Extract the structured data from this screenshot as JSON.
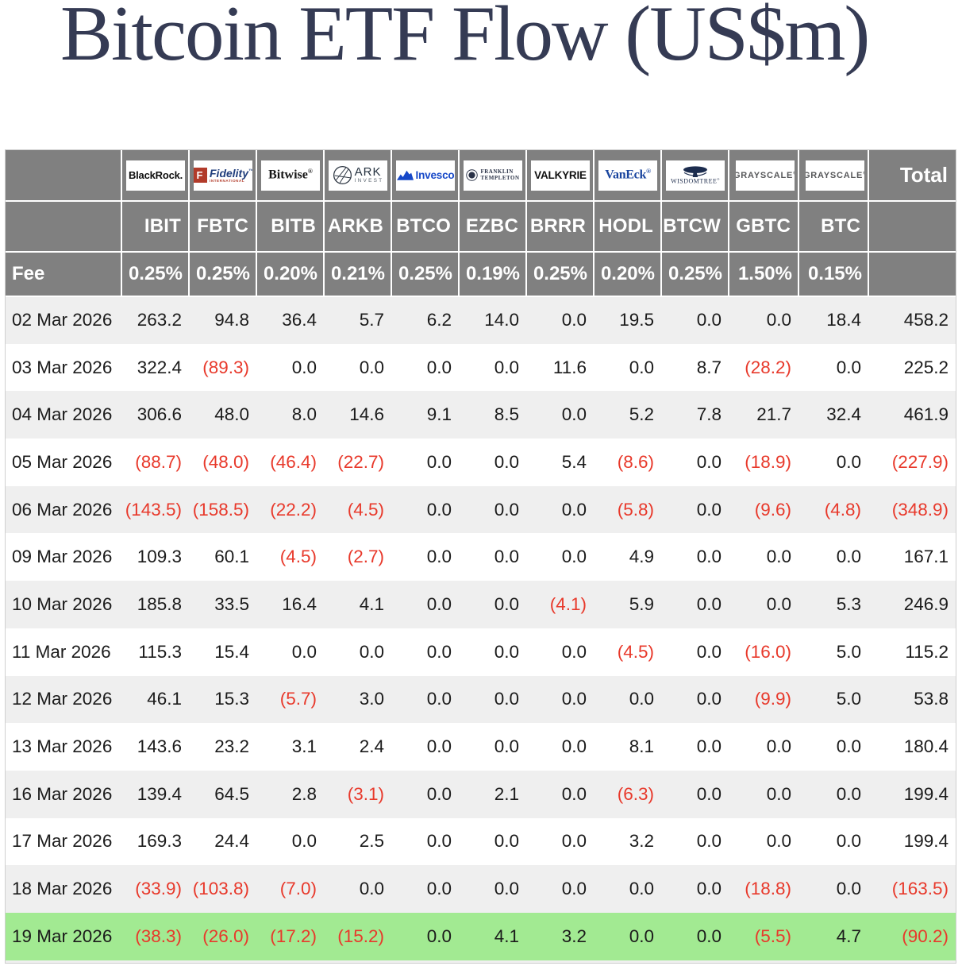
{
  "title": "Bitcoin ETF Flow (US$m)",
  "colors": {
    "header_gray": "#808080",
    "row_stripe": "#efefef",
    "highlight_green": "#a2ea92",
    "negative_red": "#e8392b",
    "title_navy": "#353b54"
  },
  "chart_data": {
    "type": "table",
    "title": "Bitcoin ETF Flow (US$m)",
    "fee_label": "Fee",
    "total_label": "Total",
    "columns": [
      {
        "ticker": "IBIT",
        "fee": "0.25%",
        "provider": "BlackRock",
        "logo": {
          "type": "blackrock",
          "text": "BlackRock."
        }
      },
      {
        "ticker": "FBTC",
        "fee": "0.25%",
        "provider": "Fidelity",
        "logo": {
          "type": "fidelity",
          "initial": "F",
          "text": "Fidelity",
          "mark": "™",
          "sub": "INTERNATIONAL"
        }
      },
      {
        "ticker": "BITB",
        "fee": "0.20%",
        "provider": "Bitwise",
        "logo": {
          "type": "bitwise",
          "text": "Bitwise",
          "mark": "®"
        }
      },
      {
        "ticker": "ARKB",
        "fee": "0.21%",
        "provider": "ARK Invest",
        "logo": {
          "type": "ark",
          "text": "ARK",
          "sub": "INVEST"
        }
      },
      {
        "ticker": "BTCO",
        "fee": "0.25%",
        "provider": "Invesco",
        "logo": {
          "type": "invesco",
          "text": "Invesco"
        }
      },
      {
        "ticker": "EZBC",
        "fee": "0.19%",
        "provider": "Franklin Templeton",
        "logo": {
          "type": "franklin",
          "text": "FRANKLIN",
          "sub": "TEMPLETON"
        }
      },
      {
        "ticker": "BRRR",
        "fee": "0.25%",
        "provider": "Valkyrie",
        "logo": {
          "type": "valkyrie",
          "text": "VALKYRIE"
        }
      },
      {
        "ticker": "HODL",
        "fee": "0.20%",
        "provider": "VanEck",
        "logo": {
          "type": "vaneck",
          "text": "VanEck",
          "mark": "®"
        }
      },
      {
        "ticker": "BTCW",
        "fee": "0.25%",
        "provider": "WisdomTree",
        "logo": {
          "type": "wisdomtree",
          "text": "WISDOMTREE",
          "mark": "®"
        }
      },
      {
        "ticker": "GBTC",
        "fee": "1.50%",
        "provider": "Grayscale",
        "logo": {
          "type": "grayscale",
          "text": "GRAYSCALE",
          "mark": "®"
        }
      },
      {
        "ticker": "BTC",
        "fee": "0.15%",
        "provider": "Grayscale",
        "logo": {
          "type": "grayscale",
          "text": "GRAYSCALE",
          "mark": "®"
        }
      }
    ],
    "rows": [
      {
        "date": "02 Mar 2026",
        "values": [
          "263.2",
          "94.8",
          "36.4",
          "5.7",
          "6.2",
          "14.0",
          "0.0",
          "19.5",
          "0.0",
          "0.0",
          "18.4"
        ],
        "total": "458.2",
        "highlight": false
      },
      {
        "date": "03 Mar 2026",
        "values": [
          "322.4",
          "(89.3)",
          "0.0",
          "0.0",
          "0.0",
          "0.0",
          "11.6",
          "0.0",
          "8.7",
          "(28.2)",
          "0.0"
        ],
        "total": "225.2",
        "highlight": false
      },
      {
        "date": "04 Mar 2026",
        "values": [
          "306.6",
          "48.0",
          "8.0",
          "14.6",
          "9.1",
          "8.5",
          "0.0",
          "5.2",
          "7.8",
          "21.7",
          "32.4"
        ],
        "total": "461.9",
        "highlight": false
      },
      {
        "date": "05 Mar 2026",
        "values": [
          "(88.7)",
          "(48.0)",
          "(46.4)",
          "(22.7)",
          "0.0",
          "0.0",
          "5.4",
          "(8.6)",
          "0.0",
          "(18.9)",
          "0.0"
        ],
        "total": "(227.9)",
        "highlight": false
      },
      {
        "date": "06 Mar 2026",
        "values": [
          "(143.5)",
          "(158.5)",
          "(22.2)",
          "(4.5)",
          "0.0",
          "0.0",
          "0.0",
          "(5.8)",
          "0.0",
          "(9.6)",
          "(4.8)"
        ],
        "total": "(348.9)",
        "highlight": false
      },
      {
        "date": "09 Mar 2026",
        "values": [
          "109.3",
          "60.1",
          "(4.5)",
          "(2.7)",
          "0.0",
          "0.0",
          "0.0",
          "4.9",
          "0.0",
          "0.0",
          "0.0"
        ],
        "total": "167.1",
        "highlight": false
      },
      {
        "date": "10 Mar 2026",
        "values": [
          "185.8",
          "33.5",
          "16.4",
          "4.1",
          "0.0",
          "0.0",
          "(4.1)",
          "5.9",
          "0.0",
          "0.0",
          "5.3"
        ],
        "total": "246.9",
        "highlight": false
      },
      {
        "date": "11 Mar 2026",
        "values": [
          "115.3",
          "15.4",
          "0.0",
          "0.0",
          "0.0",
          "0.0",
          "0.0",
          "(4.5)",
          "0.0",
          "(16.0)",
          "5.0"
        ],
        "total": "115.2",
        "highlight": false
      },
      {
        "date": "12 Mar 2026",
        "values": [
          "46.1",
          "15.3",
          "(5.7)",
          "3.0",
          "0.0",
          "0.0",
          "0.0",
          "0.0",
          "0.0",
          "(9.9)",
          "5.0"
        ],
        "total": "53.8",
        "highlight": false
      },
      {
        "date": "13 Mar 2026",
        "values": [
          "143.6",
          "23.2",
          "3.1",
          "2.4",
          "0.0",
          "0.0",
          "0.0",
          "8.1",
          "0.0",
          "0.0",
          "0.0"
        ],
        "total": "180.4",
        "highlight": false
      },
      {
        "date": "16 Mar 2026",
        "values": [
          "139.4",
          "64.5",
          "2.8",
          "(3.1)",
          "0.0",
          "2.1",
          "0.0",
          "(6.3)",
          "0.0",
          "0.0",
          "0.0"
        ],
        "total": "199.4",
        "highlight": false
      },
      {
        "date": "17 Mar 2026",
        "values": [
          "169.3",
          "24.4",
          "0.0",
          "2.5",
          "0.0",
          "0.0",
          "0.0",
          "3.2",
          "0.0",
          "0.0",
          "0.0"
        ],
        "total": "199.4",
        "highlight": false
      },
      {
        "date": "18 Mar 2026",
        "values": [
          "(33.9)",
          "(103.8)",
          "(7.0)",
          "0.0",
          "0.0",
          "0.0",
          "0.0",
          "0.0",
          "0.0",
          "(18.8)",
          "0.0"
        ],
        "total": "(163.5)",
        "highlight": false
      },
      {
        "date": "19 Mar 2026",
        "values": [
          "(38.3)",
          "(26.0)",
          "(17.2)",
          "(15.2)",
          "0.0",
          "4.1",
          "3.2",
          "0.0",
          "0.0",
          "(5.5)",
          "4.7"
        ],
        "total": "(90.2)",
        "highlight": true
      }
    ]
  }
}
